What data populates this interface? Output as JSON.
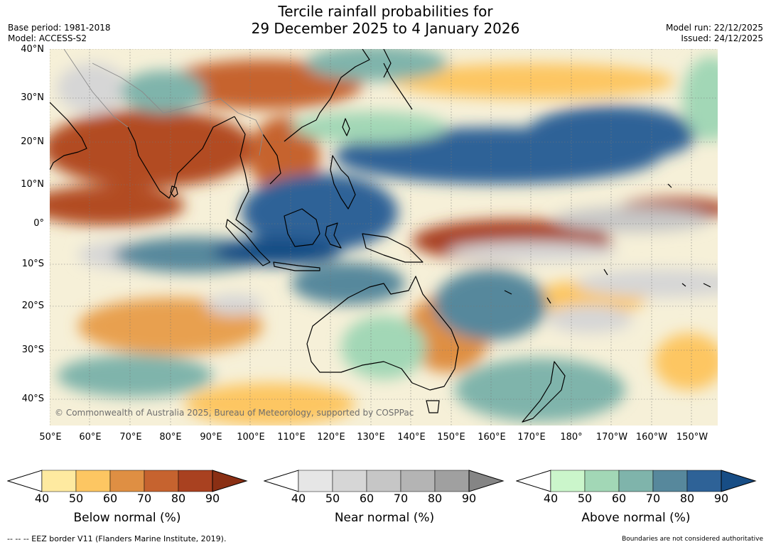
{
  "header": {
    "title_line1": "Tercile rainfall probabilities for",
    "title_line2": "29 December 2025 to 4 January 2026",
    "base_period": "Base period: 1981-2018",
    "model": "Model: ACCESS-S2",
    "model_run": "Model run: 22/12/2025",
    "issued": "Issued: 24/12/2025"
  },
  "map": {
    "lat_labels": [
      "40°N",
      "30°N",
      "20°N",
      "10°N",
      "0°",
      "10°S",
      "20°S",
      "30°S",
      "40°S"
    ],
    "lon_labels": [
      "50°E",
      "60°E",
      "70°E",
      "80°E",
      "90°E",
      "100°E",
      "110°E",
      "120°E",
      "130°E",
      "140°E",
      "150°E",
      "160°E",
      "170°E",
      "180°",
      "170°W",
      "160°W",
      "150°W"
    ],
    "copyright": "© Commonwealth of Australia 2025, Bureau of Meteorology, supported by COSPPac"
  },
  "colorbars": [
    {
      "title": "Below normal (%)",
      "ticks": [
        "40",
        "50",
        "60",
        "70",
        "80",
        "90"
      ],
      "colors": [
        "#ffffff",
        "#feeaa0",
        "#fdc662",
        "#df8f43",
        "#c6632f",
        "#a94120",
        "#8a2f14"
      ]
    },
    {
      "title": "Near normal (%)",
      "ticks": [
        "40",
        "50",
        "60",
        "70",
        "80",
        "90"
      ],
      "colors": [
        "#ffffff",
        "#e6e6e6",
        "#d6d6d6",
        "#c6c6c6",
        "#b4b4b4",
        "#a0a0a0",
        "#858585"
      ]
    },
    {
      "title": "Above normal (%)",
      "ticks": [
        "40",
        "50",
        "60",
        "70",
        "80",
        "90"
      ],
      "colors": [
        "#ffffff",
        "#cbf6cb",
        "#a2d7b6",
        "#7fb4ab",
        "#57889c",
        "#2e6297",
        "#174d85"
      ]
    }
  ],
  "footer": {
    "eez_note": "--  --  -- EEZ border V11 (Flanders Marine Institute, 2019).",
    "boundaries_note": "Boundaries are not considered authoritative"
  }
}
